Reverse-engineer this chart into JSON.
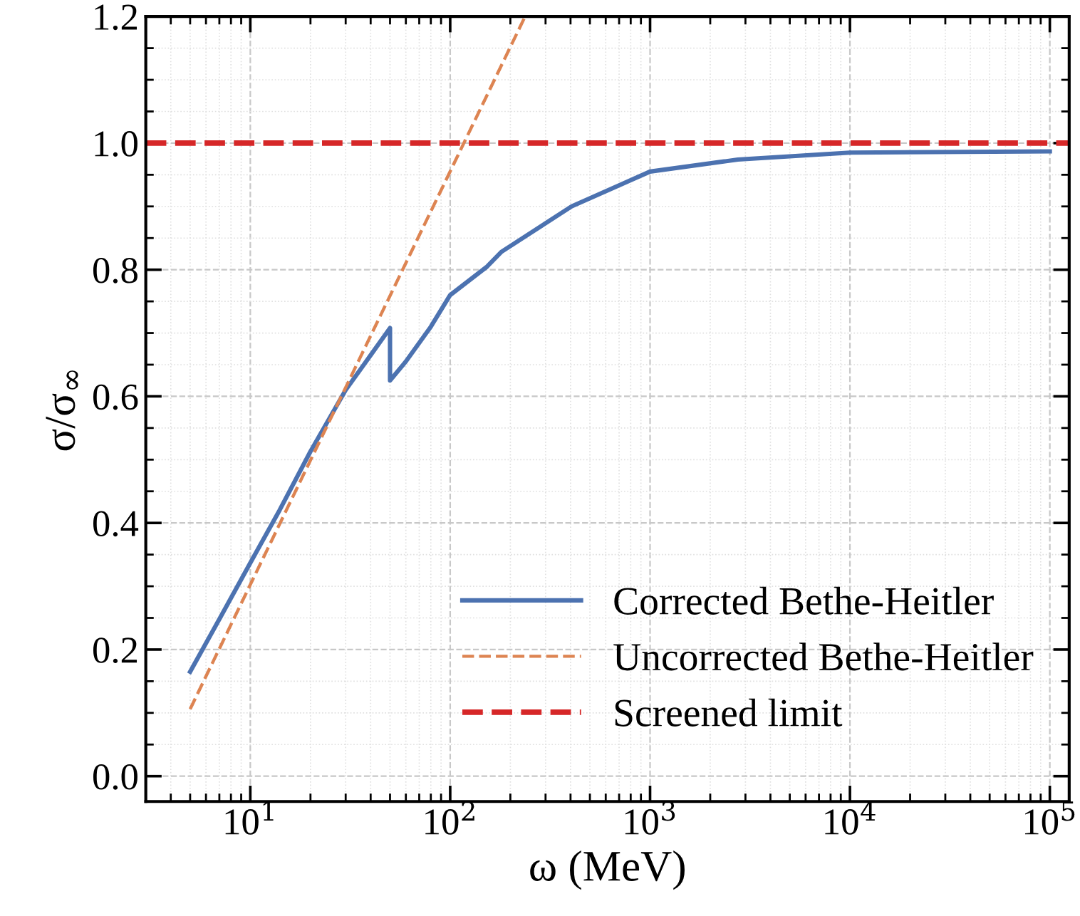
{
  "chart_data": {
    "type": "line",
    "xlabel": "ω (MeV)",
    "ylabel": "σ/σ$_{∞}$",
    "log": "x",
    "xlim": [
      3,
      125000
    ],
    "xticks": [
      {
        "value": 10,
        "label": "10$^{1}$"
      },
      {
        "value": 100,
        "label": "10$^{2}$"
      },
      {
        "value": 1000,
        "label": "10$^{3}$"
      },
      {
        "value": 10000,
        "label": "10$^{4}$"
      },
      {
        "value": 100000,
        "label": "10$^{5}$"
      }
    ],
    "ylim": [
      -0.04,
      1.2
    ],
    "yticks": [
      {
        "value": 0,
        "label": "0.0"
      },
      0.2,
      0.4,
      0.6,
      0.8,
      {
        "value": 1,
        "label": "1.0"
      },
      1.2
    ],
    "grid": true,
    "legend": "bottom right",
    "marker": "none",
    "series": [
      {
        "name": "Corrected Bethe-Heitler",
        "color": "#4c72b0",
        "line_style": "solid",
        "x": [
          5,
          7,
          10,
          14,
          20,
          30,
          40,
          50,
          50,
          60,
          80,
          100,
          153,
          180,
          405,
          1000,
          2750,
          10000,
          100000
        ],
        "values": [
          0.165,
          0.248,
          0.337,
          0.42,
          0.513,
          0.61,
          0.665,
          0.708,
          0.625,
          0.655,
          0.71,
          0.76,
          0.805,
          0.828,
          0.9,
          0.955,
          0.974,
          0.985,
          0.987
        ]
      },
      {
        "name": "Uncorrected Bethe-Heitler",
        "color": "#dd8452",
        "line_style": "dashed",
        "x": [
          5,
          237
        ],
        "values": [
          0.106,
          1.2
        ]
      }
    ],
    "ref_lines": [
      {
        "axis": "y",
        "value": 1.0,
        "label": "Screened limit",
        "color": "#d62728",
        "line_style": "dashed"
      }
    ]
  }
}
